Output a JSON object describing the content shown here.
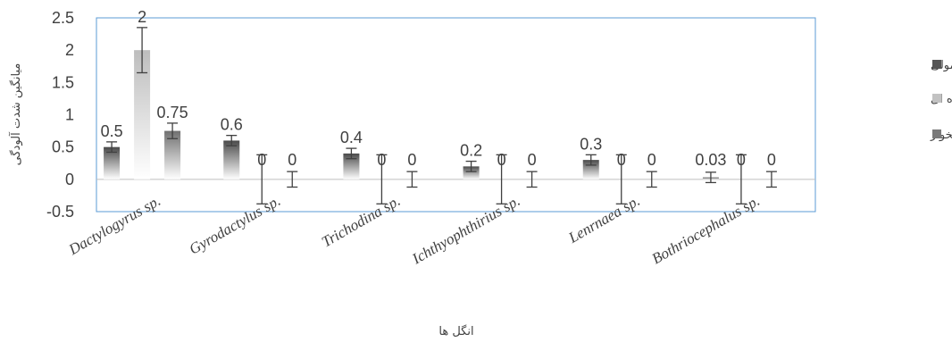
{
  "chart_data": {
    "type": "bar",
    "title": "",
    "xlabel": "انگل ها",
    "ylabel": "میانگین شدت آلودگی",
    "ylim": [
      -0.5,
      2.5
    ],
    "yticks": [
      "2.5",
      "2",
      "1.5",
      "1",
      "0.5",
      "0",
      "-0.5"
    ],
    "categories": [
      "Dactylogyrus sp.",
      "Gyrodactylus sp.",
      "Trichodina sp.",
      "Ichthyophthirius sp.",
      "Lenrnaea sp.",
      "Bothriocephalus sp."
    ],
    "series": [
      {
        "name": "کپور معمولی",
        "values": [
          0.5,
          0.6,
          0.4,
          0.2,
          0.3,
          0.03
        ],
        "labels": [
          "0.5",
          "0.6",
          "0.4",
          "0.2",
          "0.3",
          "0.03"
        ],
        "error": [
          0.08,
          0.08,
          0.08,
          0.08,
          0.08,
          0.08
        ],
        "color": "#555555"
      },
      {
        "name": "کپور نقره ای",
        "values": [
          2,
          0,
          0,
          0,
          0,
          0
        ],
        "labels": [
          "2",
          "0",
          "0",
          "0",
          "0",
          "0"
        ],
        "error": [
          0.35,
          0.38,
          0.38,
          0.38,
          0.38,
          0.38
        ],
        "color": "#c2c2c2"
      },
      {
        "name": "کپور علفخوار",
        "values": [
          0.75,
          0,
          0,
          0,
          0,
          0
        ],
        "labels": [
          "0.75",
          "0",
          "0",
          "0",
          "0",
          "0"
        ],
        "error": [
          0.12,
          0.12,
          0.12,
          0.12,
          0.12,
          0.12
        ],
        "color": "#7a7a7a"
      }
    ],
    "grid": false,
    "legend_position": "right",
    "plot_border_color": "#5b9bd5"
  }
}
